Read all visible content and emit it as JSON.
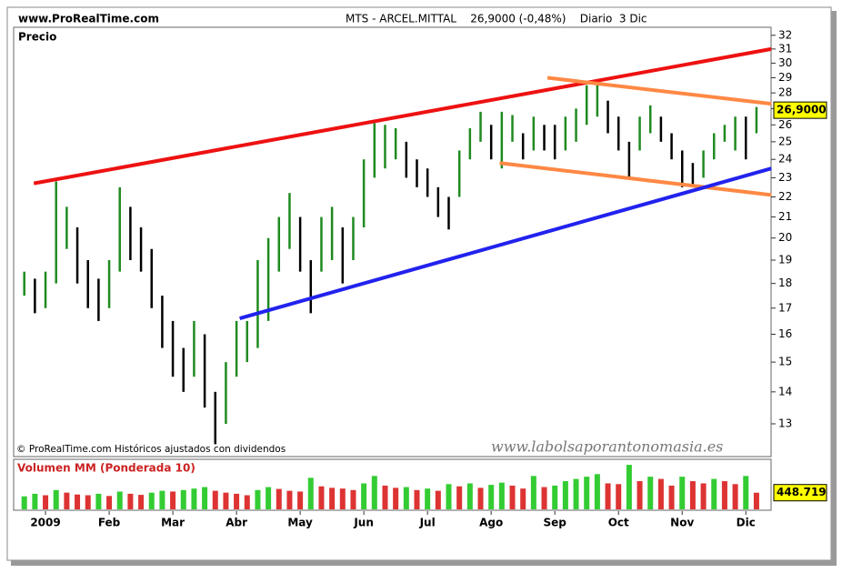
{
  "header": {
    "site": "www.ProRealTime.com",
    "title": "MTS - ARCEL.MITTAL    26,9000 (-0,48%)    Diario  3 Dic"
  },
  "chart_data": {
    "type": "range-bar",
    "title": "Precio",
    "footnote": "© ProRealTime.com Históricos ajustados con dividendos",
    "watermark": "www.labolsaporantonomasia.es",
    "categories": [
      null,
      null,
      "2009",
      null,
      null,
      null,
      null,
      null,
      "Feb",
      null,
      null,
      null,
      null,
      null,
      "Mar",
      null,
      null,
      null,
      null,
      null,
      "Abr",
      null,
      null,
      null,
      null,
      null,
      "May",
      null,
      null,
      null,
      null,
      null,
      "Jun",
      null,
      null,
      null,
      null,
      null,
      "Jul",
      null,
      null,
      null,
      null,
      null,
      "Ago",
      null,
      null,
      null,
      null,
      null,
      "Sep",
      null,
      null,
      null,
      null,
      null,
      "Oct",
      null,
      null,
      null,
      null,
      null,
      "Nov",
      null,
      null,
      null,
      null,
      null,
      "Dic",
      null
    ],
    "series": [
      {
        "name": "High",
        "values": [
          18.5,
          18.2,
          18.5,
          22.8,
          21.5,
          20.5,
          19,
          18.2,
          19,
          22.5,
          21.5,
          20.5,
          19.5,
          17.5,
          16.5,
          15.5,
          16.5,
          16,
          14,
          15,
          16.5,
          16.5,
          19,
          20,
          21,
          22.2,
          21,
          19,
          21,
          21.5,
          20.5,
          21,
          24,
          26.1,
          26,
          25.8,
          25,
          24,
          23.5,
          22.5,
          22,
          24.5,
          25.8,
          26.8,
          26,
          26.8,
          26.6,
          25.5,
          26.5,
          26,
          26,
          26.5,
          27,
          28.5,
          28.7,
          27.5,
          26.5,
          25,
          26.5,
          27.2,
          26.5,
          25.5,
          24.5,
          23.8,
          24.5,
          25.5,
          26,
          26.5,
          26.5,
          27.1
        ]
      },
      {
        "name": "Low",
        "values": [
          17.5,
          16.8,
          17,
          18,
          19.5,
          18,
          17,
          16.5,
          17,
          18.5,
          19,
          18.5,
          17,
          15.5,
          14.5,
          14,
          14.5,
          13.5,
          12.4,
          13,
          14.5,
          15,
          15.5,
          16.5,
          18.5,
          19.5,
          18.5,
          16.8,
          18.5,
          19,
          18,
          19,
          20.5,
          23,
          23.5,
          24,
          23,
          22.5,
          22,
          21,
          20.4,
          22,
          24,
          25,
          24,
          23.5,
          25,
          24,
          24.5,
          24.5,
          24,
          24.5,
          25,
          26,
          26.5,
          25.5,
          24.5,
          23,
          24.5,
          25.5,
          25,
          24,
          22.5,
          22.6,
          23,
          24,
          25,
          24.5,
          24,
          25.5
        ]
      }
    ],
    "up_color": "#1f8a1f",
    "down_color": "#000000",
    "log_scale": true,
    "ylim": [
      12.1,
      32.6
    ],
    "yticks": [
      13,
      14,
      15,
      16,
      17,
      18,
      19,
      20,
      21,
      22,
      23,
      24,
      25,
      26,
      27,
      28,
      29,
      30,
      31,
      32
    ],
    "last_price": {
      "value": 26.9,
      "label": "26,9000"
    },
    "trend_lines": [
      {
        "color": "#ee1111",
        "x": [
          0.9,
          70.4
        ],
        "y": [
          22.7,
          31.0
        ]
      },
      {
        "color": "#ff8844",
        "x": [
          49.3,
          70.4
        ],
        "y": [
          29.0,
          27.3
        ]
      },
      {
        "color": "#ff8844",
        "x": [
          44.8,
          70.4
        ],
        "y": [
          23.8,
          22.1
        ]
      },
      {
        "color": "#2222ee",
        "x": [
          20.3,
          70.4
        ],
        "y": [
          16.6,
          23.5
        ]
      }
    ],
    "volume": {
      "title": "Volumen MM (Ponderada 10)",
      "up_color": "#33cc33",
      "down_color": "#dd3333",
      "values": [
        350000,
        420000,
        380000,
        520000,
        450000,
        400000,
        380000,
        420000,
        360000,
        480000,
        420000,
        390000,
        450000,
        500000,
        480000,
        520000,
        560000,
        600000,
        500000,
        450000,
        420000,
        380000,
        520000,
        600000,
        550000,
        500000,
        480000,
        850000,
        620000,
        580000,
        560000,
        520000,
        700000,
        900000,
        640000,
        580000,
        600000,
        520000,
        560000,
        500000,
        680000,
        620000,
        700000,
        580000,
        660000,
        720000,
        640000,
        560000,
        900000,
        600000,
        640000,
        760000,
        820000,
        880000,
        950000,
        700000,
        680000,
        1200000,
        760000,
        880000,
        820000,
        640000,
        880000,
        760000,
        700000,
        820000,
        760000,
        680000,
        900000,
        448719
      ],
      "ylim": [
        0,
        1300000
      ],
      "last": {
        "value": 448719,
        "label": "448.719"
      }
    }
  }
}
